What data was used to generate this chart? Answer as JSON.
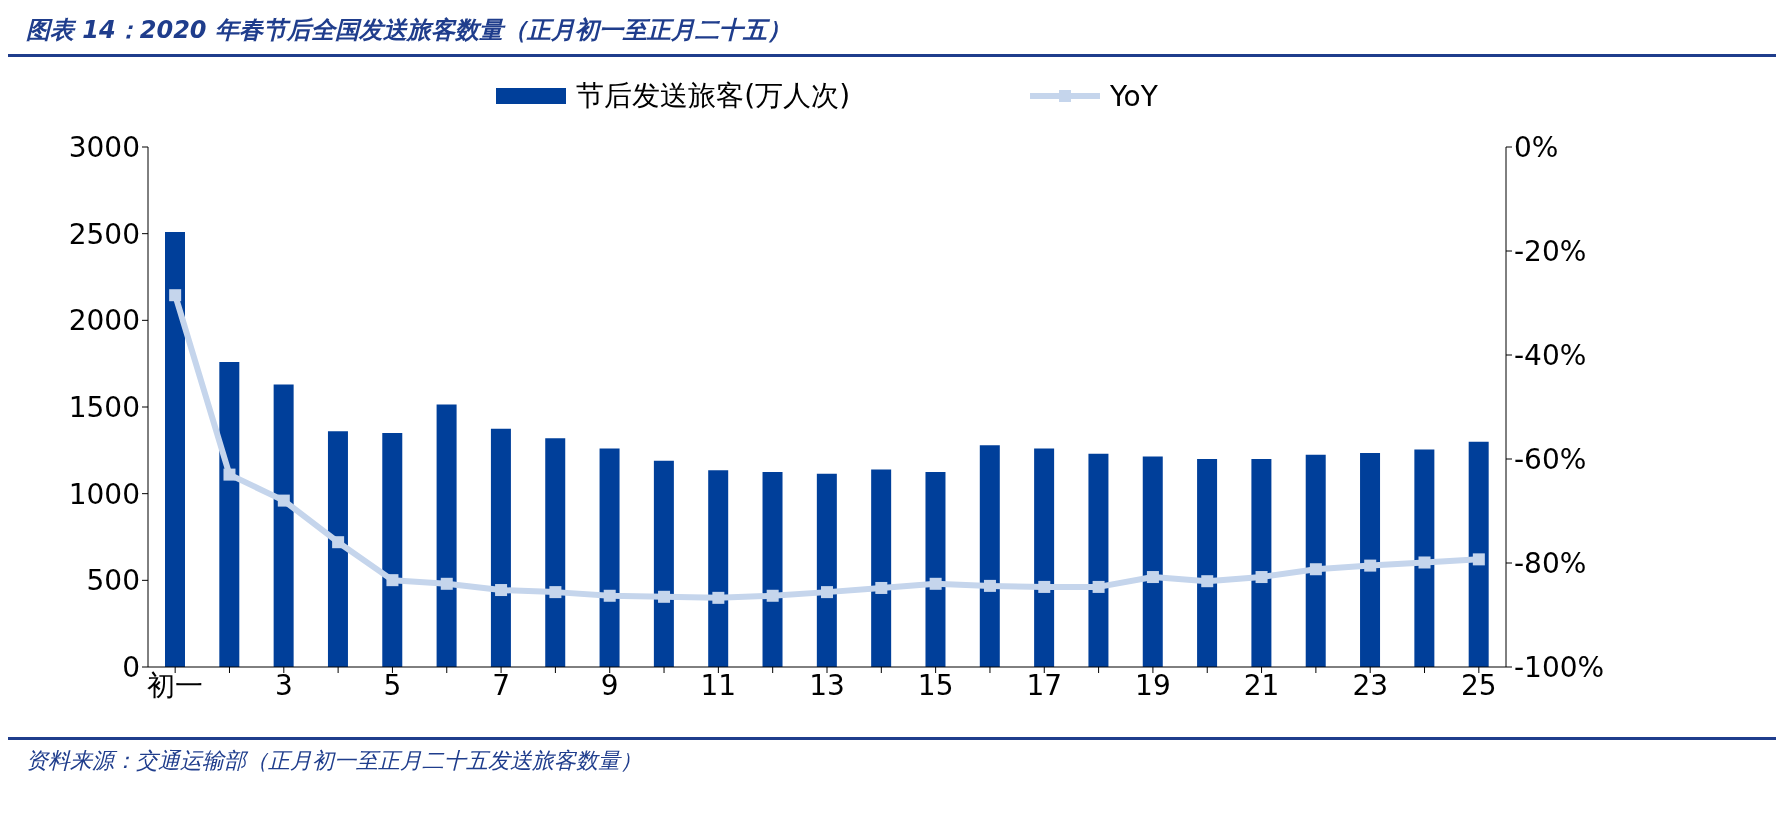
{
  "chart_data": {
    "type": "bar",
    "title": "图表 14：2020 年春节后全国发送旅客数量（正月初一至正月二十五）",
    "annotations": [
      "资料来源：交通运输部（正月初一至正月二十五发送旅客数量）"
    ],
    "categories": [
      "初一",
      null,
      "3",
      null,
      "5",
      null,
      "7",
      null,
      "9",
      null,
      "11",
      null,
      "13",
      null,
      "15",
      null,
      "17",
      null,
      "19",
      null,
      "21",
      null,
      "23",
      null,
      "25"
    ],
    "series": [
      {
        "name": "节后发送旅客(万人次)",
        "color": "#003f9a",
        "values": [
          2510,
          1760,
          1630,
          1360,
          1350,
          1515,
          1375,
          1320,
          1260,
          1190,
          1135,
          1125,
          1115,
          1140,
          1125,
          1280,
          1260,
          1230,
          1215,
          1200,
          1200,
          1225,
          1235,
          1255,
          1300
        ]
      },
      {
        "name": "YoY",
        "type": "line",
        "axis": "y2",
        "color": "#c5d5ec",
        "marker": "square",
        "values": [
          -28.5,
          -63,
          -68,
          -76,
          -83.3,
          -84,
          -85.2,
          -85.6,
          -86.3,
          -86.5,
          -86.7,
          -86.3,
          -85.6,
          -84.8,
          -84,
          -84.4,
          -84.6,
          -84.6,
          -82.7,
          -83.5,
          -82.7,
          -81.2,
          -80.5,
          -79.9,
          -79.3
        ]
      }
    ],
    "ylim": [
      0,
      3000
    ],
    "yticks": [
      0,
      500,
      1000,
      1500,
      2000,
      2500,
      3000
    ],
    "y2lim": [
      -100,
      0
    ],
    "y2ticks": [
      {
        "value": -100,
        "label": "-100%"
      },
      {
        "value": -80,
        "label": "-80%"
      },
      {
        "value": -60,
        "label": "-60%"
      },
      {
        "value": -40,
        "label": "-40%"
      },
      {
        "value": -20,
        "label": "-20%"
      },
      {
        "value": 0,
        "label": "0%"
      }
    ],
    "grid": false,
    "legend": "top"
  }
}
